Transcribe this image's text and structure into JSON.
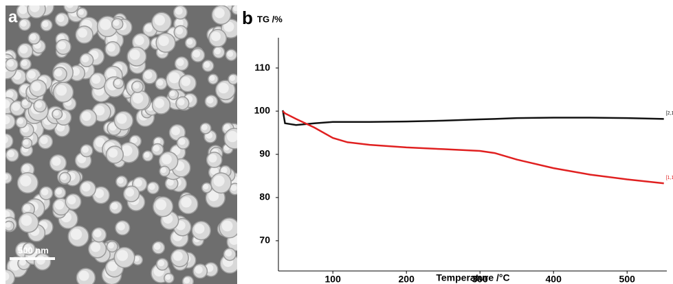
{
  "panel_a": {
    "label": "a",
    "scale_bar": "500 nm"
  },
  "chart_data": {
    "type": "line",
    "panel_label": "b",
    "y_label": "TG /%",
    "x_label": "Temperature /°C",
    "x": [
      32,
      35,
      50,
      75,
      100,
      120,
      150,
      200,
      250,
      300,
      320,
      350,
      400,
      450,
      500,
      550
    ],
    "series": [
      {
        "name": "[2,1]",
        "color": "#111111",
        "values": [
          100.2,
          97.2,
          96.8,
          97.2,
          97.5,
          97.5,
          97.5,
          97.6,
          97.8,
          98.1,
          98.2,
          98.4,
          98.5,
          98.5,
          98.4,
          98.2
        ]
      },
      {
        "name": "[1,1]",
        "color": "#e02020",
        "values": [
          100,
          99.5,
          98.2,
          96.2,
          93.8,
          92.8,
          92.2,
          91.6,
          91.2,
          90.8,
          90.3,
          88.8,
          86.8,
          85.3,
          84.2,
          83.3
        ]
      }
    ],
    "xlim": [
      26,
      554
    ],
    "ylim": [
      63,
      117
    ],
    "xticks": [
      100,
      200,
      300,
      400,
      500
    ],
    "yticks": [
      70,
      80,
      90,
      100,
      110
    ]
  }
}
